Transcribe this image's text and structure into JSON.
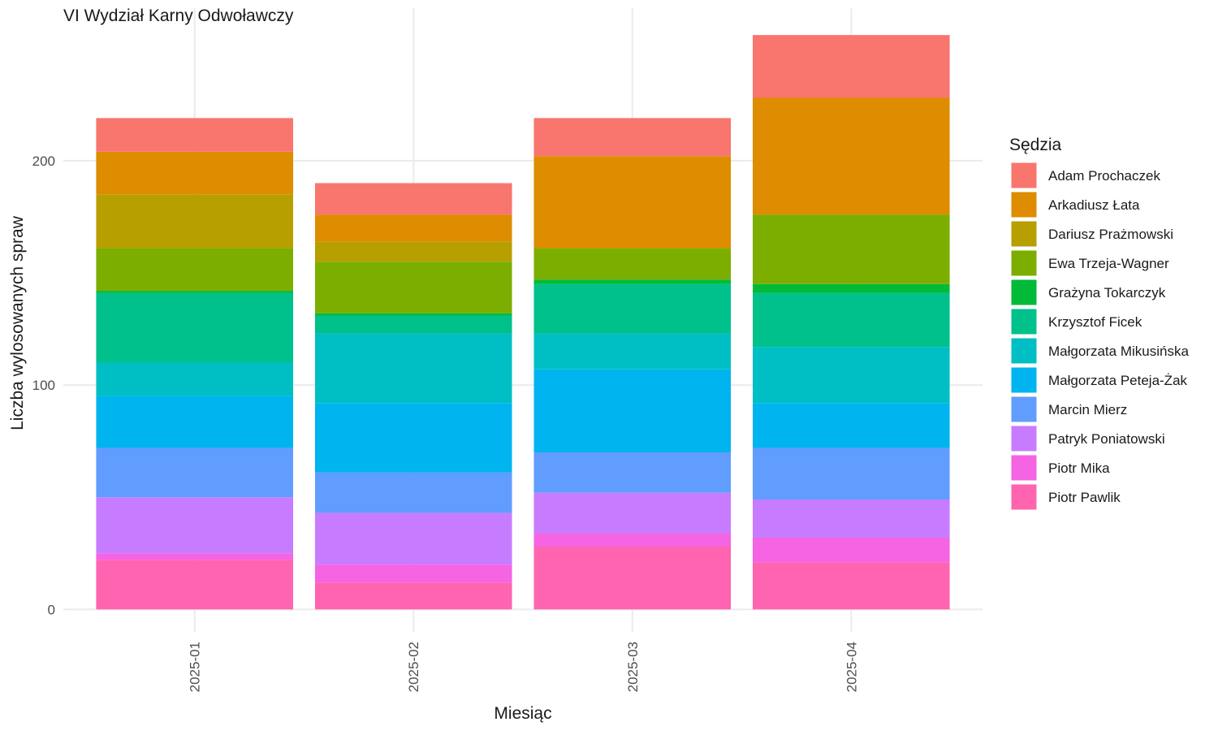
{
  "chart_data": {
    "type": "bar",
    "stacked": true,
    "title": "VI Wydział Karny Odwoławczy",
    "xlabel": "Miesiąc",
    "ylabel": "Liczba wylosowanych spraw",
    "ylim": [
      -10,
      268
    ],
    "yticks": [
      0,
      100,
      200
    ],
    "grid": true,
    "legend_title": "Sędzia",
    "legend_position": "right",
    "categories": [
      "2025-01",
      "2025-02",
      "2025-03",
      "2025-04"
    ],
    "series": [
      {
        "name": "Adam Prochaczek",
        "color": "#F8766D",
        "values": [
          15,
          14,
          17,
          28
        ]
      },
      {
        "name": "Arkadiusz Łata",
        "color": "#DE8C00",
        "values": [
          19,
          12,
          41,
          52
        ]
      },
      {
        "name": "Dariusz Prażmowski",
        "color": "#B79F00",
        "values": [
          24,
          9,
          0,
          0
        ]
      },
      {
        "name": "Ewa Trzeja-Wagner",
        "color": "#7CAE00",
        "values": [
          19,
          23,
          14,
          31
        ]
      },
      {
        "name": "Grażyna Tokarczyk",
        "color": "#00BA38",
        "values": [
          1,
          1,
          2,
          4
        ]
      },
      {
        "name": "Krzysztof Ficek",
        "color": "#00C08B",
        "values": [
          31,
          8,
          22,
          24
        ]
      },
      {
        "name": "Małgorzata Mikusińska",
        "color": "#00BFC4",
        "values": [
          15,
          31,
          16,
          25
        ]
      },
      {
        "name": "Małgorzata Peteja-Żak",
        "color": "#00B4F0",
        "values": [
          23,
          31,
          37,
          20
        ]
      },
      {
        "name": "Marcin Mierz",
        "color": "#619CFF",
        "values": [
          22,
          18,
          18,
          23
        ]
      },
      {
        "name": "Patryk Poniatowski",
        "color": "#C77CFF",
        "values": [
          25,
          23,
          18,
          17
        ]
      },
      {
        "name": "Piotr Mika",
        "color": "#F564E3",
        "values": [
          3,
          8,
          6,
          11
        ]
      },
      {
        "name": "Piotr Pawlik",
        "color": "#FF64B0",
        "values": [
          22,
          12,
          28,
          21
        ]
      }
    ]
  }
}
